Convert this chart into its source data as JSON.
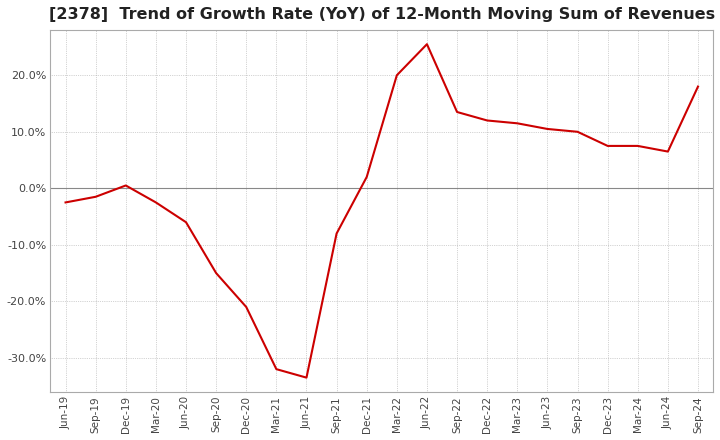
{
  "title": "[2378]  Trend of Growth Rate (YoY) of 12-Month Moving Sum of Revenues",
  "title_fontsize": 11.5,
  "background_color": "#ffffff",
  "line_color": "#cc0000",
  "grid_color": "#aaaaaa",
  "zero_line_color": "#888888",
  "border_color": "#aaaaaa",
  "x_labels": [
    "Jun-19",
    "Sep-19",
    "Dec-19",
    "Mar-20",
    "Jun-20",
    "Sep-20",
    "Dec-20",
    "Mar-21",
    "Jun-21",
    "Sep-21",
    "Dec-21",
    "Mar-22",
    "Jun-22",
    "Sep-22",
    "Dec-22",
    "Mar-23",
    "Jun-23",
    "Sep-23",
    "Dec-23",
    "Mar-24",
    "Jun-24",
    "Sep-24"
  ],
  "y_values": [
    -2.5,
    -1.5,
    0.5,
    -2.5,
    -6.0,
    -15.0,
    -21.0,
    -32.0,
    -33.5,
    -8.0,
    2.0,
    20.0,
    25.5,
    13.5,
    12.0,
    11.5,
    10.5,
    10.0,
    7.5,
    7.5,
    6.5,
    18.0
  ],
  "ylim": [
    -36,
    28
  ],
  "yticks": [
    -30.0,
    -20.0,
    -10.0,
    0.0,
    10.0,
    20.0
  ],
  "figsize": [
    7.2,
    4.4
  ],
  "dpi": 100
}
